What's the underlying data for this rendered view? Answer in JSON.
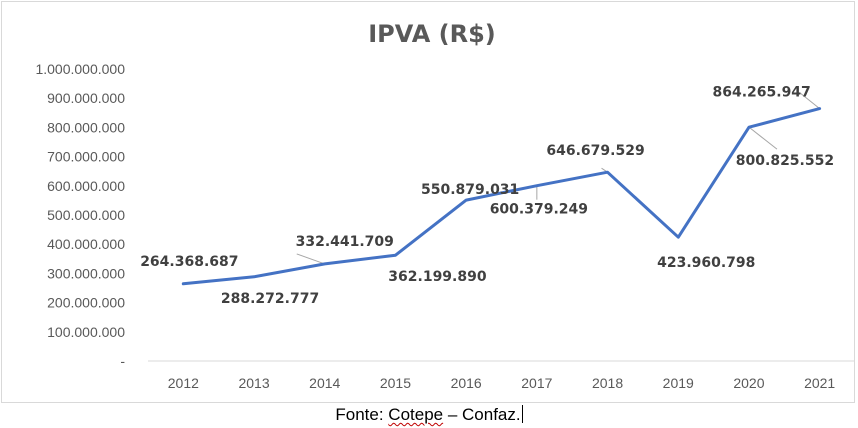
{
  "chart_data": {
    "type": "line",
    "title": "IPVA (R$)",
    "categories": [
      "2012",
      "2013",
      "2014",
      "2015",
      "2016",
      "2017",
      "2018",
      "2019",
      "2020",
      "2021"
    ],
    "values": [
      264368687,
      288272777,
      332441709,
      362199890,
      550879031,
      600379249,
      646679529,
      423960798,
      800825552,
      864265947
    ],
    "data_labels": [
      "264.368.687",
      "288.272.777",
      "332.441.709",
      "362.199.890",
      "550.879.031",
      "600.379.249",
      "646.679.529",
      "423.960.798",
      "800.825.552",
      "864.265.947"
    ],
    "y_ticks": [
      "-",
      "100.000.000",
      "200.000.000",
      "300.000.000",
      "400.000.000",
      "500.000.000",
      "600.000.000",
      "700.000.000",
      "800.000.000",
      "900.000.000",
      "1.000.000.000"
    ],
    "ylim": [
      0,
      1000000000
    ],
    "grid": false,
    "line_color": "#4472c4"
  },
  "caption": {
    "prefix": "Fonte: ",
    "source": "Cotepe",
    "suffix": " – Confaz."
  }
}
